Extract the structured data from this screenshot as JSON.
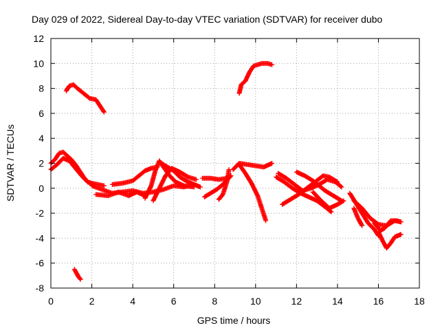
{
  "chart_data": {
    "type": "scatter",
    "title": "Day 029 of 2022, Sidereal Day-to-day VTEC variation (SDTVAR) for receiver dubo",
    "xlabel": "GPS time / hours",
    "ylabel": "SDTVAR / TECUs",
    "xlim": [
      0,
      18
    ],
    "ylim": [
      -8,
      12
    ],
    "xticks": [
      "0",
      "2",
      "4",
      "6",
      "8",
      "10",
      "12",
      "14",
      "16",
      "18"
    ],
    "yticks": [
      "-8",
      "-6",
      "-4",
      "-2",
      "0",
      "2",
      "4",
      "6",
      "8",
      "10",
      "12"
    ],
    "grid": true,
    "marker": "+",
    "color": "#ff0000",
    "tracks": [
      {
        "name": "arc-early-upper-1",
        "points": [
          [
            0.0,
            2.0
          ],
          [
            0.2,
            2.3
          ],
          [
            0.4,
            2.8
          ],
          [
            0.6,
            2.9
          ],
          [
            0.8,
            2.6
          ],
          [
            1.0,
            2.3
          ],
          [
            1.2,
            1.9
          ],
          [
            1.4,
            1.4
          ],
          [
            1.6,
            0.9
          ],
          [
            1.8,
            0.5
          ],
          [
            2.0,
            0.4
          ],
          [
            2.3,
            0.3
          ],
          [
            2.6,
            0.2
          ]
        ]
      },
      {
        "name": "arc-early-upper-2",
        "points": [
          [
            0.0,
            1.5
          ],
          [
            0.3,
            1.9
          ],
          [
            0.6,
            2.4
          ],
          [
            0.9,
            2.2
          ],
          [
            1.2,
            1.6
          ],
          [
            1.5,
            1.0
          ],
          [
            1.8,
            0.5
          ],
          [
            2.1,
            0.3
          ]
        ]
      },
      {
        "name": "arc-high-left",
        "points": [
          [
            0.75,
            7.8
          ],
          [
            0.9,
            8.2
          ],
          [
            1.1,
            8.3
          ],
          [
            1.3,
            8.0
          ],
          [
            1.6,
            7.6
          ],
          [
            1.9,
            7.2
          ],
          [
            2.2,
            7.1
          ],
          [
            2.4,
            6.6
          ],
          [
            2.6,
            6.1
          ]
        ]
      },
      {
        "name": "arc-low-left",
        "points": [
          [
            1.15,
            -6.5
          ],
          [
            1.25,
            -6.8
          ],
          [
            1.35,
            -7.1
          ],
          [
            1.45,
            -7.3
          ]
        ]
      },
      {
        "name": "arc-mid-flat",
        "points": [
          [
            2.0,
            0.2
          ],
          [
            2.5,
            -0.1
          ],
          [
            3.0,
            -0.4
          ],
          [
            3.5,
            -0.3
          ],
          [
            4.0,
            -0.2
          ],
          [
            4.5,
            -0.4
          ],
          [
            5.0,
            -0.3
          ],
          [
            5.5,
            -0.1
          ],
          [
            6.0,
            0.2
          ],
          [
            6.5,
            0.1
          ],
          [
            7.0,
            0.3
          ]
        ]
      },
      {
        "name": "arc-mid-rise",
        "points": [
          [
            3.0,
            0.3
          ],
          [
            3.5,
            0.4
          ],
          [
            4.0,
            0.6
          ],
          [
            4.3,
            1.0
          ],
          [
            4.6,
            1.4
          ],
          [
            4.9,
            1.6
          ],
          [
            5.2,
            1.7
          ]
        ]
      },
      {
        "name": "arc-mid-hump-1",
        "points": [
          [
            4.6,
            -0.8
          ],
          [
            4.9,
            0.2
          ],
          [
            5.1,
            1.4
          ],
          [
            5.3,
            2.2
          ],
          [
            5.5,
            1.7
          ],
          [
            5.8,
            1.0
          ],
          [
            6.1,
            0.5
          ],
          [
            6.5,
            0.2
          ],
          [
            7.0,
            0.1
          ]
        ]
      },
      {
        "name": "arc-mid-hump-2",
        "points": [
          [
            5.0,
            -1.0
          ],
          [
            5.3,
            0.0
          ],
          [
            5.6,
            1.0
          ],
          [
            5.9,
            1.6
          ],
          [
            6.3,
            1.3
          ],
          [
            6.7,
            0.9
          ],
          [
            7.1,
            0.7
          ]
        ]
      },
      {
        "name": "arc-mid-hump-3",
        "points": [
          [
            5.4,
            2.0
          ],
          [
            5.7,
            1.7
          ],
          [
            6.0,
            1.4
          ],
          [
            6.3,
            0.9
          ],
          [
            6.7,
            0.5
          ],
          [
            7.0,
            0.3
          ],
          [
            7.3,
            0.1
          ]
        ]
      },
      {
        "name": "arc-mid-low-cluster",
        "points": [
          [
            2.2,
            -0.5
          ],
          [
            2.8,
            -0.6
          ],
          [
            3.3,
            -0.3
          ],
          [
            3.8,
            -0.6
          ],
          [
            4.2,
            -0.3
          ],
          [
            4.6,
            -0.6
          ]
        ]
      },
      {
        "name": "arc-8h-cluster",
        "points": [
          [
            7.4,
            0.8
          ],
          [
            7.8,
            0.8
          ],
          [
            8.2,
            0.7
          ],
          [
            8.6,
            0.8
          ],
          [
            8.8,
            1.0
          ],
          [
            8.4,
            0.3
          ],
          [
            8.1,
            -0.1
          ],
          [
            7.8,
            -0.4
          ],
          [
            7.5,
            -0.7
          ]
        ]
      },
      {
        "name": "arc-9h-upper",
        "points": [
          [
            8.9,
            1.5
          ],
          [
            9.2,
            2.0
          ],
          [
            9.6,
            1.9
          ],
          [
            10.0,
            1.8
          ],
          [
            10.4,
            1.7
          ],
          [
            10.8,
            2.0
          ]
        ]
      },
      {
        "name": "arc-9h-falling",
        "points": [
          [
            9.2,
            1.9
          ],
          [
            9.5,
            1.2
          ],
          [
            9.8,
            0.4
          ],
          [
            10.1,
            -0.6
          ],
          [
            10.3,
            -1.6
          ],
          [
            10.5,
            -2.6
          ]
        ]
      },
      {
        "name": "arc-8h-drop",
        "points": [
          [
            8.7,
            1.5
          ],
          [
            8.6,
            0.5
          ],
          [
            8.4,
            -0.5
          ],
          [
            8.2,
            -0.9
          ]
        ]
      },
      {
        "name": "arc-high-right",
        "points": [
          [
            9.2,
            7.6
          ],
          [
            9.3,
            8.3
          ],
          [
            9.5,
            8.6
          ],
          [
            9.7,
            9.3
          ],
          [
            9.9,
            9.8
          ],
          [
            10.1,
            9.9
          ],
          [
            10.3,
            10.0
          ],
          [
            10.6,
            10.0
          ],
          [
            10.8,
            9.9
          ]
        ]
      },
      {
        "name": "arc-12h-lower",
        "points": [
          [
            11.0,
            0.9
          ],
          [
            11.4,
            0.5
          ],
          [
            11.8,
            0.0
          ],
          [
            12.2,
            -0.4
          ],
          [
            12.6,
            -0.7
          ],
          [
            13.0,
            -1.0
          ],
          [
            13.4,
            -1.5
          ],
          [
            13.7,
            -1.9
          ]
        ]
      },
      {
        "name": "arc-12h-mid",
        "points": [
          [
            11.1,
            1.2
          ],
          [
            11.5,
            0.8
          ],
          [
            11.9,
            0.3
          ],
          [
            12.3,
            -0.2
          ],
          [
            12.7,
            0.0
          ],
          [
            13.1,
            0.3
          ],
          [
            13.5,
            0.7
          ],
          [
            13.9,
            0.5
          ],
          [
            14.2,
            0.1
          ]
        ]
      },
      {
        "name": "arc-12h-cross",
        "points": [
          [
            11.3,
            -1.3
          ],
          [
            11.7,
            -0.9
          ],
          [
            12.1,
            -0.5
          ],
          [
            12.5,
            0.0
          ],
          [
            12.9,
            0.5
          ],
          [
            13.3,
            1.0
          ],
          [
            13.6,
            0.9
          ],
          [
            14.0,
            0.5
          ]
        ]
      },
      {
        "name": "arc-12h-hump",
        "points": [
          [
            12.0,
            1.3
          ],
          [
            12.4,
            1.0
          ],
          [
            12.8,
            0.6
          ],
          [
            13.1,
            0.2
          ],
          [
            13.4,
            -0.2
          ],
          [
            13.8,
            -0.6
          ],
          [
            14.2,
            -1.0
          ]
        ]
      },
      {
        "name": "arc-13h-down",
        "points": [
          [
            12.8,
            -0.3
          ],
          [
            13.2,
            -1.0
          ],
          [
            13.6,
            -1.6
          ],
          [
            14.0,
            -1.3
          ],
          [
            14.3,
            -1.0
          ]
        ]
      },
      {
        "name": "arc-15h-steep",
        "points": [
          [
            14.6,
            -0.4
          ],
          [
            14.9,
            -1.2
          ],
          [
            15.2,
            -2.0
          ],
          [
            15.5,
            -2.8
          ],
          [
            15.8,
            -3.3
          ],
          [
            16.0,
            -3.8
          ]
        ]
      },
      {
        "name": "arc-15h-long",
        "points": [
          [
            14.8,
            -1.0
          ],
          [
            15.2,
            -1.6
          ],
          [
            15.6,
            -2.4
          ],
          [
            16.0,
            -2.9
          ],
          [
            16.4,
            -3.0
          ],
          [
            16.8,
            -2.6
          ],
          [
            17.1,
            -2.7
          ]
        ]
      },
      {
        "name": "arc-15h-drop",
        "points": [
          [
            14.8,
            -1.6
          ],
          [
            15.0,
            -2.4
          ],
          [
            15.2,
            -3.0
          ]
        ]
      },
      {
        "name": "arc-16h-dip",
        "points": [
          [
            16.0,
            -3.5
          ],
          [
            16.2,
            -4.2
          ],
          [
            16.4,
            -4.8
          ],
          [
            16.6,
            -4.4
          ],
          [
            16.8,
            -3.9
          ],
          [
            17.1,
            -3.7
          ]
        ]
      },
      {
        "name": "arc-16h-mid",
        "points": [
          [
            15.8,
            -2.8
          ],
          [
            16.1,
            -3.4
          ],
          [
            16.3,
            -3.2
          ],
          [
            16.6,
            -2.6
          ],
          [
            16.9,
            -2.6
          ],
          [
            17.1,
            -2.7
          ]
        ]
      }
    ]
  }
}
